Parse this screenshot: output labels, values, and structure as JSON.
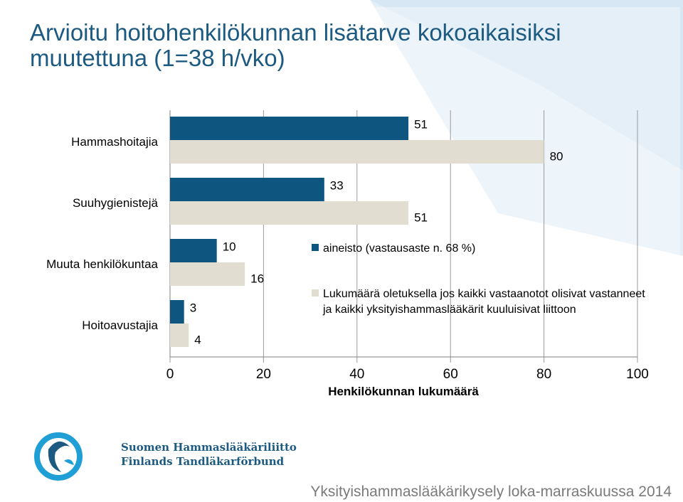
{
  "slide": {
    "title": "Arvioitu hoitohenkilökunnan lisätarve kokoaikaisiksi muutettuna (1=38 h/vko)",
    "footer": "Yksityishammaslääkärikysely loka-marraskuussa 2014",
    "logo": {
      "name_fi": "Suomen Hammaslääkäriliitto",
      "name_sv": "Finlands Tandläkarförbund"
    },
    "colors": {
      "title": "#1c5a82",
      "accent_light": "#cfe3f1",
      "background_band": "#e6f0f8"
    }
  },
  "chart_data": {
    "type": "bar",
    "orientation": "horizontal",
    "categories": [
      "Hammashoitajia",
      "Suuhygienistejä",
      "Muuta henkilökuntaa",
      "Hoitoavustajia"
    ],
    "series": [
      {
        "name": "aineisto (vastausaste n. 68 %)",
        "values": [
          51,
          33,
          10,
          3
        ],
        "color": "#0e5680"
      },
      {
        "name": "Lukumäärä oletuksella jos kaikki vastaanotot olisivat vastanneet ja kaikki yksityishammaslääkärit kuuluisivat liittoon",
        "values": [
          80,
          51,
          16,
          4
        ],
        "color": "#e1ded1"
      }
    ],
    "xlabel": "Henkilökunnan lukumäärä",
    "xlim": [
      0,
      100
    ],
    "xticks": [
      "0",
      "20",
      "40",
      "60",
      "80",
      "100"
    ],
    "grid": true,
    "legend_position": "right, inside plot"
  }
}
